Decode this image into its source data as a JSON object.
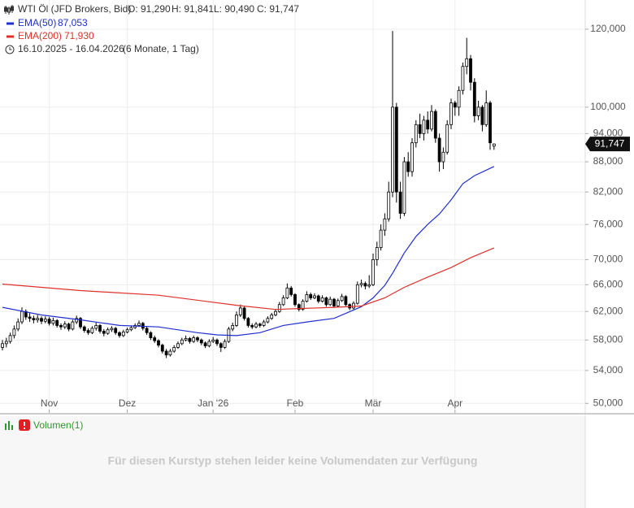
{
  "chart_data": {
    "type": "candlestick",
    "title": "WTI Öl (JFD Brokers, Bid)",
    "header_values": [
      "O: 91,290",
      "H: 91,841",
      "L: 90,490",
      "C: 91,747"
    ],
    "date_range": "16.10.2025 - 16.04.2026",
    "period": "(6 Monate, 1 Tag)",
    "log_scale": true,
    "grid": true,
    "xlim": [
      -0.625,
      149.375
    ],
    "ylim": [
      48.9,
      128.5
    ],
    "yticks": [
      {
        "value": 50,
        "label": "50,000"
      },
      {
        "value": 54,
        "label": "54,000"
      },
      {
        "value": 58,
        "label": "58,000"
      },
      {
        "value": 62,
        "label": "62,000"
      },
      {
        "value": 66,
        "label": "66,000"
      },
      {
        "value": 70,
        "label": "70,000"
      },
      {
        "value": 76,
        "label": "76,000"
      },
      {
        "value": 82,
        "label": "82,000"
      },
      {
        "value": 88,
        "label": "88,000"
      },
      {
        "value": 94,
        "label": "94,000"
      },
      {
        "value": 100,
        "label": "100,000"
      },
      {
        "value": 120,
        "label": "120,000"
      }
    ],
    "xticks": [
      {
        "value": 12,
        "label": "Nov"
      },
      {
        "value": 32,
        "label": "Dez"
      },
      {
        "value": 54,
        "label": "Jan '26"
      },
      {
        "value": 75,
        "label": "Feb"
      },
      {
        "value": 95,
        "label": "Mär"
      },
      {
        "value": 116,
        "label": "Apr"
      }
    ],
    "last_price": 91.747,
    "last_price_label": "91,747",
    "series": [
      {
        "name": "WTI Öl",
        "color": "#000000",
        "ohlc": [
          [
            57.0,
            58.0,
            56.6,
            57.5
          ],
          [
            57.5,
            58.3,
            57.0,
            57.8
          ],
          [
            57.8,
            59.0,
            57.5,
            58.6
          ],
          [
            58.6,
            60.0,
            58.2,
            59.5
          ],
          [
            59.5,
            61.0,
            59.2,
            60.5
          ],
          [
            60.5,
            62.6,
            60.2,
            62.0
          ],
          [
            62.0,
            62.3,
            60.8,
            61.2
          ],
          [
            61.2,
            61.8,
            60.5,
            61.0
          ],
          [
            61.0,
            61.4,
            60.3,
            60.8
          ],
          [
            60.8,
            61.5,
            60.4,
            61.0
          ],
          [
            61.0,
            61.3,
            60.2,
            60.6
          ],
          [
            60.6,
            61.3,
            60.3,
            60.9
          ],
          [
            60.9,
            61.2,
            60.0,
            60.3
          ],
          [
            60.3,
            61.1,
            60.0,
            60.7
          ],
          [
            60.7,
            60.9,
            59.7,
            60.0
          ],
          [
            60.0,
            60.3,
            59.4,
            59.8
          ],
          [
            59.8,
            60.6,
            59.5,
            60.2
          ],
          [
            60.2,
            60.4,
            59.2,
            59.5
          ],
          [
            59.5,
            60.8,
            59.3,
            60.5
          ],
          [
            60.5,
            61.4,
            60.2,
            61.0
          ],
          [
            61.0,
            61.2,
            59.5,
            59.8
          ],
          [
            59.8,
            60.0,
            59.0,
            59.3
          ],
          [
            59.3,
            59.6,
            58.7,
            59.0
          ],
          [
            59.0,
            59.9,
            58.8,
            59.6
          ],
          [
            59.6,
            60.4,
            59.3,
            60.0
          ],
          [
            60.0,
            60.2,
            58.9,
            59.2
          ],
          [
            59.2,
            59.5,
            58.5,
            58.9
          ],
          [
            58.9,
            59.7,
            58.7,
            59.4
          ],
          [
            59.4,
            59.9,
            59.1,
            59.6
          ],
          [
            59.6,
            59.8,
            58.7,
            59.0
          ],
          [
            59.0,
            59.2,
            58.3,
            58.6
          ],
          [
            58.6,
            59.4,
            58.4,
            59.1
          ],
          [
            59.1,
            59.7,
            58.9,
            59.4
          ],
          [
            59.4,
            60.0,
            59.2,
            59.7
          ],
          [
            59.7,
            60.3,
            59.5,
            60.0
          ],
          [
            60.0,
            60.7,
            59.8,
            60.3
          ],
          [
            60.3,
            60.5,
            59.3,
            59.6
          ],
          [
            59.6,
            59.8,
            58.7,
            59.0
          ],
          [
            59.0,
            59.2,
            58.0,
            58.3
          ],
          [
            58.3,
            58.6,
            57.6,
            57.9
          ],
          [
            57.9,
            58.1,
            57.0,
            57.3
          ],
          [
            57.3,
            57.5,
            56.2,
            56.5
          ],
          [
            56.5,
            56.8,
            55.6,
            56.0
          ],
          [
            56.0,
            56.8,
            55.8,
            56.5
          ],
          [
            56.5,
            57.3,
            56.3,
            57.0
          ],
          [
            57.0,
            57.8,
            56.8,
            57.5
          ],
          [
            57.5,
            58.3,
            57.3,
            58.0
          ],
          [
            58.0,
            58.6,
            57.8,
            58.2
          ],
          [
            58.2,
            58.4,
            57.5,
            57.8
          ],
          [
            57.8,
            58.6,
            57.6,
            58.3
          ],
          [
            58.3,
            58.5,
            57.7,
            58.0
          ],
          [
            58.0,
            58.2,
            57.3,
            57.6
          ],
          [
            57.6,
            57.8,
            56.9,
            57.2
          ],
          [
            57.2,
            58.1,
            57.0,
            57.8
          ],
          [
            57.8,
            58.4,
            57.6,
            58.0
          ],
          [
            58.0,
            58.2,
            57.2,
            57.5
          ],
          [
            57.5,
            57.7,
            56.4,
            57.0
          ],
          [
            57.0,
            58.1,
            56.8,
            57.8
          ],
          [
            57.8,
            59.8,
            57.6,
            59.5
          ],
          [
            59.5,
            60.4,
            59.2,
            60.0
          ],
          [
            60.0,
            62.0,
            59.8,
            61.5
          ],
          [
            61.5,
            63.0,
            61.2,
            62.5
          ],
          [
            62.5,
            62.7,
            60.7,
            61.0
          ],
          [
            61.0,
            61.2,
            59.7,
            60.0
          ],
          [
            60.0,
            60.3,
            59.5,
            59.8
          ],
          [
            59.8,
            60.5,
            59.6,
            60.2
          ],
          [
            60.2,
            60.4,
            59.7,
            60.0
          ],
          [
            60.0,
            60.8,
            59.8,
            60.5
          ],
          [
            60.5,
            61.3,
            60.3,
            61.0
          ],
          [
            61.0,
            61.8,
            60.8,
            61.5
          ],
          [
            61.5,
            62.3,
            61.3,
            62.0
          ],
          [
            62.0,
            63.4,
            61.8,
            63.0
          ],
          [
            63.0,
            64.4,
            62.8,
            64.0
          ],
          [
            64.0,
            66.2,
            63.8,
            65.5
          ],
          [
            65.5,
            65.8,
            64.2,
            64.5
          ],
          [
            64.5,
            64.7,
            62.7,
            63.0
          ],
          [
            63.0,
            63.2,
            62.0,
            62.3
          ],
          [
            62.3,
            63.8,
            62.1,
            63.5
          ],
          [
            63.5,
            65.0,
            63.3,
            64.5
          ],
          [
            64.5,
            64.8,
            63.7,
            64.0
          ],
          [
            64.0,
            64.7,
            63.8,
            64.3
          ],
          [
            64.3,
            64.5,
            63.2,
            63.5
          ],
          [
            63.5,
            64.4,
            63.3,
            64.0
          ],
          [
            64.0,
            64.2,
            62.7,
            63.0
          ],
          [
            63.0,
            64.2,
            62.8,
            63.8
          ],
          [
            63.8,
            64.0,
            62.5,
            62.8
          ],
          [
            62.8,
            63.9,
            62.6,
            63.6
          ],
          [
            63.6,
            64.6,
            63.4,
            64.2
          ],
          [
            64.2,
            64.4,
            62.8,
            63.0
          ],
          [
            63.0,
            63.2,
            62.2,
            62.5
          ],
          [
            62.5,
            63.5,
            62.3,
            63.2
          ],
          [
            63.2,
            66.5,
            63.0,
            66.0
          ],
          [
            66.0,
            66.8,
            65.6,
            66.2
          ],
          [
            66.2,
            66.5,
            65.3,
            65.8
          ],
          [
            65.8,
            67.5,
            65.5,
            66.0
          ],
          [
            66.0,
            71.0,
            65.8,
            70.0
          ],
          [
            70.0,
            73.0,
            69.0,
            72.0
          ],
          [
            72.0,
            76.0,
            71.5,
            75.0
          ],
          [
            75.0,
            78.0,
            74.0,
            77.0
          ],
          [
            77.0,
            84.0,
            76.5,
            82.0
          ],
          [
            82.0,
            119.5,
            81.0,
            100.0
          ],
          [
            100.0,
            101.0,
            80.0,
            82.0
          ],
          [
            82.0,
            84.0,
            77.0,
            78.0
          ],
          [
            78.0,
            89.0,
            77.5,
            88.0
          ],
          [
            88.0,
            90.0,
            85.0,
            86.0
          ],
          [
            86.0,
            93.0,
            85.0,
            92.0
          ],
          [
            92.0,
            97.0,
            91.0,
            96.0
          ],
          [
            96.0,
            98.5,
            93.0,
            94.0
          ],
          [
            94.0,
            98.0,
            92.5,
            97.0
          ],
          [
            97.0,
            99.0,
            94.0,
            95.0
          ],
          [
            95.0,
            100.5,
            94.5,
            99.0
          ],
          [
            99.0,
            99.5,
            92.0,
            93.0
          ],
          [
            93.0,
            94.0,
            86.0,
            88.0
          ],
          [
            88.0,
            91.0,
            86.5,
            90.0
          ],
          [
            90.0,
            97.0,
            89.5,
            96.0
          ],
          [
            96.0,
            102.0,
            95.0,
            101.0
          ],
          [
            101.0,
            101.5,
            98.0,
            100.0
          ],
          [
            100.0,
            105.0,
            98.0,
            104.0
          ],
          [
            104.0,
            111.0,
            103.0,
            110.0
          ],
          [
            110.0,
            117.6,
            108.0,
            112.0
          ],
          [
            112.0,
            113.0,
            104.0,
            106.0
          ],
          [
            106.0,
            107.0,
            96.5,
            98.0
          ],
          [
            98.0,
            101.5,
            97.0,
            100.0
          ],
          [
            100.0,
            100.5,
            94.5,
            96.0
          ],
          [
            96.0,
            104.0,
            95.5,
            101.0
          ],
          [
            101.0,
            101.5,
            90.5,
            92.0
          ],
          [
            91.29,
            91.841,
            90.49,
            91.747
          ]
        ]
      },
      {
        "name": "EMA(50)",
        "color": "#1f2fd0",
        "last_label": "87,053",
        "x": [
          0,
          10,
          20,
          30,
          40,
          50,
          55,
          60,
          66,
          72,
          78,
          85,
          92,
          95,
          98,
          100,
          103,
          106,
          109,
          112,
          115,
          118,
          121,
          126
        ],
        "values": [
          62.6,
          61.5,
          60.8,
          60.0,
          59.8,
          59.0,
          58.7,
          58.6,
          59.0,
          60.0,
          60.5,
          61.0,
          62.7,
          64.0,
          65.9,
          67.8,
          71.1,
          73.9,
          76.0,
          77.9,
          80.5,
          83.6,
          85.2,
          87.053
        ]
      },
      {
        "name": "EMA(200)",
        "color": "#e0302a",
        "last_label": "71,930",
        "x": [
          0,
          20,
          40,
          60,
          70,
          85,
          92,
          98,
          103,
          109,
          115,
          120,
          126
        ],
        "values": [
          66.1,
          65.1,
          64.4,
          62.9,
          62.3,
          62.6,
          62.8,
          64.0,
          65.6,
          67.2,
          68.7,
          70.3,
          71.93
        ]
      }
    ],
    "volume_panel": {
      "title": "Volumen(1)",
      "message": "Für diesen Kurstyp stehen leider keine Volumendaten zur Verfügung"
    }
  }
}
